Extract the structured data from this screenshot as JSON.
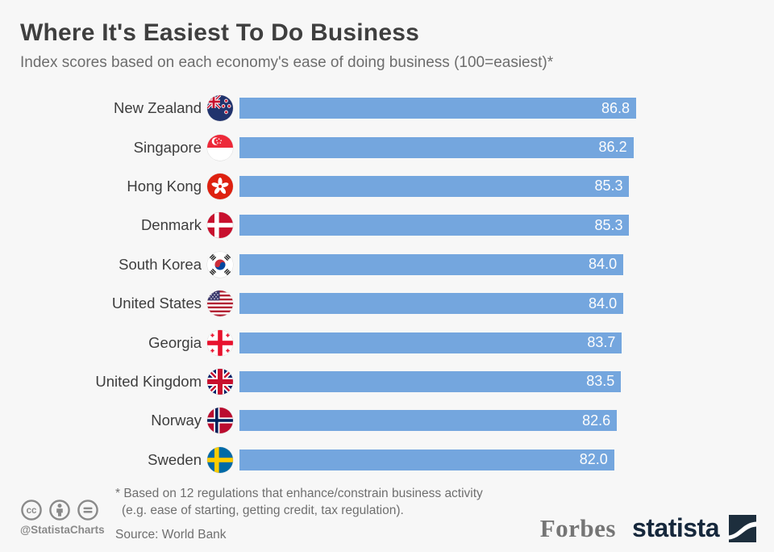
{
  "header": {
    "title": "Where It's Easiest To Do Business",
    "subtitle": "Index scores based on each economy's ease of doing business (100=easiest)*"
  },
  "chart_data": {
    "type": "bar",
    "orientation": "horizontal",
    "title": "Where It's Easiest To Do Business",
    "subtitle": "Index scores based on each economy's ease of doing business (100=easiest)*",
    "categories": [
      "New Zealand",
      "Singapore",
      "Hong Kong",
      "Denmark",
      "South Korea",
      "United States",
      "Georgia",
      "United Kingdom",
      "Norway",
      "Sweden"
    ],
    "values": [
      86.8,
      86.2,
      85.3,
      85.3,
      84.0,
      84.0,
      83.7,
      83.5,
      82.6,
      82.0
    ],
    "value_labels": [
      "86.8",
      "86.2",
      "85.3",
      "85.3",
      "84.0",
      "84.0",
      "83.7",
      "83.5",
      "82.6",
      "82.0"
    ],
    "flag_icons": [
      "new-zealand-flag",
      "singapore-flag",
      "hong-kong-flag",
      "denmark-flag",
      "south-korea-flag",
      "united-states-flag",
      "georgia-flag",
      "united-kingdom-flag",
      "norway-flag",
      "sweden-flag"
    ],
    "xlabel": "",
    "ylabel": "",
    "xlim": [
      0,
      86.8
    ],
    "grid": false,
    "legend": false,
    "bar_color": "#74a6de",
    "value_label_color": "#fdfdfd"
  },
  "footer": {
    "footnote_line1": "* Based on 12 regulations that enhance/constrain business activity",
    "footnote_line2": "(e.g. ease of starting, getting credit, tax regulation).",
    "source": "Source: World Bank",
    "cc_handle": "@StatistaCharts",
    "cc_icons": [
      "creative-commons-icon",
      "attribution-icon",
      "no-derivatives-icon"
    ],
    "brands": {
      "forbes": "Forbes",
      "statista": "statista"
    }
  }
}
